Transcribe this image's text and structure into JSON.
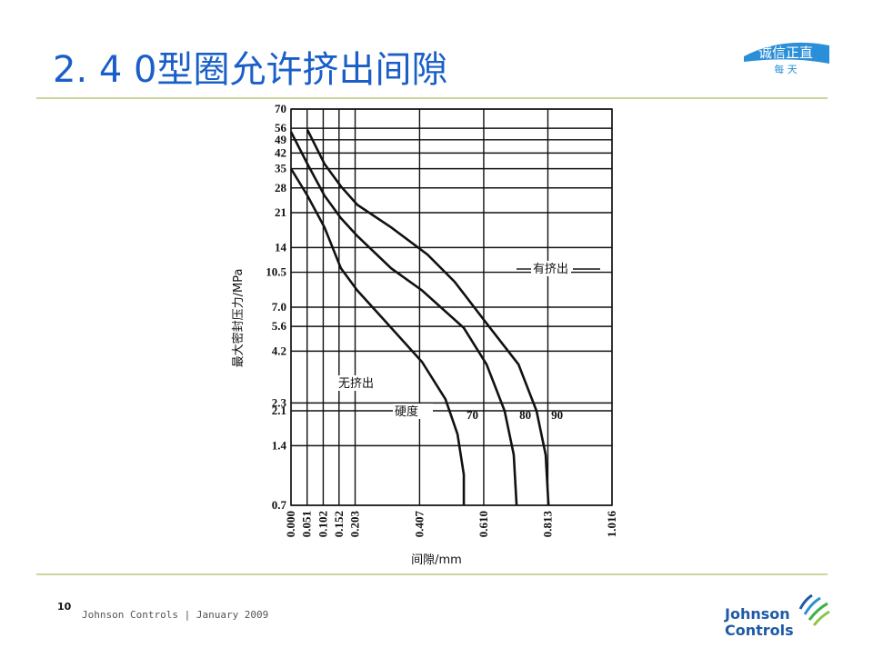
{
  "header": {
    "title": "2. 4  0型圈允许挤出间隙",
    "logo_main": "诚信正直",
    "logo_sub": "每 天"
  },
  "footer": {
    "page": "10",
    "text": "Johnson Controls | January 2009",
    "logo_line1": "Johnson",
    "logo_line2": "Controls"
  },
  "chart_data": {
    "type": "line",
    "x_label": "间隙/mm",
    "y_label": "最大密封压力/MPa",
    "yscale": "log",
    "grid": true,
    "color": "#111111",
    "xlim": [
      0,
      1.016
    ],
    "ylim": [
      0.7,
      70
    ],
    "xticks": [
      {
        "value": 0,
        "label": "0.000"
      },
      0.051,
      0.102,
      0.152,
      0.203,
      0.407,
      {
        "value": 0.61,
        "label": "0.610"
      },
      0.813,
      1.016
    ],
    "yticks": [
      70,
      56,
      49,
      42,
      35,
      28,
      21,
      14,
      10.5,
      {
        "value": 7,
        "label": "7.0"
      },
      5.6,
      4.2,
      2.3,
      2.1,
      1.4,
      0.7
    ],
    "annotations": [
      "有挤出",
      "无挤出",
      "硬度"
    ],
    "series": [
      {
        "name": "70",
        "color": "#111111",
        "x": [
          0,
          0.052,
          0.106,
          0.158,
          0.21,
          0.288,
          0.415,
          0.489,
          0.527,
          0.547,
          0.547
        ],
        "values": [
          35,
          25.6,
          17.7,
          11,
          8.5,
          6.2,
          3.7,
          2.4,
          1.6,
          1.0,
          0.7
        ]
      },
      {
        "name": "80",
        "color": "#111111",
        "x": [
          0,
          0.052,
          0.106,
          0.158,
          0.21,
          0.317,
          0.415,
          0.547,
          0.619,
          0.676,
          0.705,
          0.714
        ],
        "values": [
          53.7,
          37,
          25.6,
          19.7,
          16,
          11,
          8.5,
          5.5,
          3.6,
          2.1,
          1.26,
          0.7
        ]
      },
      {
        "name": "90",
        "color": "#111111",
        "x": [
          0.052,
          0.106,
          0.158,
          0.21,
          0.317,
          0.432,
          0.518,
          0.619,
          0.72,
          0.777,
          0.806,
          0.815
        ],
        "values": [
          55,
          37,
          28.5,
          23,
          17.7,
          12.9,
          9.4,
          5.8,
          3.6,
          2.1,
          1.26,
          0.7
        ]
      }
    ]
  }
}
